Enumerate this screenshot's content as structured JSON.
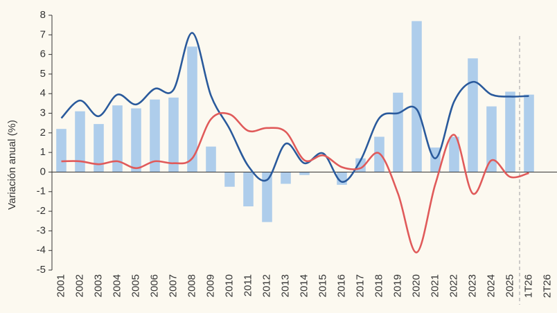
{
  "chart_data": {
    "type": "bar_line",
    "y_label": "Variación anual (%)",
    "categories": [
      "2001",
      "2002",
      "2003",
      "2004",
      "2005",
      "2006",
      "2007",
      "2008",
      "2009",
      "2010",
      "2011",
      "2012",
      "2013",
      "2014",
      "2015",
      "2016",
      "2017",
      "2018",
      "2019",
      "2020",
      "2021",
      "2022",
      "2023",
      "2024",
      "2025",
      "1T26",
      "2T26"
    ],
    "series": [
      {
        "type": "bar",
        "color": "#aecdeb",
        "values": [
          2.2,
          3.1,
          2.45,
          3.4,
          3.25,
          3.7,
          3.8,
          6.4,
          1.3,
          -0.75,
          -1.75,
          -2.55,
          -0.6,
          -0.15,
          0,
          -0.65,
          0.7,
          1.8,
          4.05,
          7.7,
          1.25,
          1.8,
          5.8,
          3.35,
          4.1,
          3.95,
          null
        ]
      },
      {
        "type": "line",
        "color": "#2a5a9c",
        "values": [
          2.75,
          3.65,
          2.85,
          3.95,
          3.45,
          4.25,
          4.2,
          7.1,
          3.9,
          2.2,
          0.3,
          -0.4,
          1.45,
          0.45,
          0.95,
          -0.5,
          0.6,
          2.75,
          3.0,
          3.2,
          0.7,
          3.6,
          4.6,
          3.95,
          3.85,
          3.88,
          null
        ]
      },
      {
        "type": "line",
        "color": "#e05a5a",
        "values": [
          0.55,
          0.55,
          0.4,
          0.55,
          0.2,
          0.55,
          0.45,
          0.7,
          2.7,
          2.95,
          2.1,
          2.25,
          2.05,
          0.6,
          0.85,
          0.25,
          0.2,
          0.95,
          -1.1,
          -4.1,
          -0.6,
          1.9,
          -1.1,
          0.6,
          -0.25,
          -0.05,
          null
        ]
      }
    ],
    "ylim": [
      -5,
      8
    ],
    "yticks": [
      -5,
      -4,
      -3,
      -2,
      -1,
      0,
      1,
      2,
      3,
      4,
      5,
      6,
      7,
      8
    ]
  }
}
